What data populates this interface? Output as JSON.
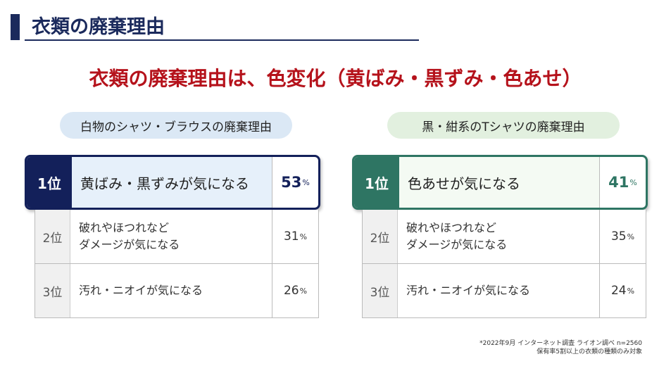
{
  "header": {
    "title": "衣類の廃棄理由"
  },
  "headline": "衣類の廃棄理由は、色変化（黄ばみ・黒ずみ・色あせ）",
  "panels": [
    {
      "label": "白物のシャツ・ブラウスの廃棄理由",
      "rows": [
        {
          "rank": "1位",
          "reason": [
            "黄ばみ・黒ずみが気になる"
          ],
          "value": 53,
          "unit": "%"
        },
        {
          "rank": "2位",
          "reason": [
            "破れやほつれなど",
            "ダメージが気になる"
          ],
          "value": 31,
          "unit": "%"
        },
        {
          "rank": "3位",
          "reason": [
            "汚れ・ニオイが気になる"
          ],
          "value": 26,
          "unit": "%"
        }
      ]
    },
    {
      "label": "黒・紺系のTシャツの廃棄理由",
      "rows": [
        {
          "rank": "1位",
          "reason": [
            "色あせが気になる"
          ],
          "value": 41,
          "unit": "%"
        },
        {
          "rank": "2位",
          "reason": [
            "破れやほつれなど",
            "ダメージが気になる"
          ],
          "value": 35,
          "unit": "%"
        },
        {
          "rank": "3位",
          "reason": [
            "汚れ・ニオイが気になる"
          ],
          "value": 24,
          "unit": "%"
        }
      ]
    }
  ],
  "footnote": [
    "*2022年9月 インターネット調査 ライオン調べ n=2560",
    "保有率5割以上の衣類の種類のみ対象"
  ]
}
